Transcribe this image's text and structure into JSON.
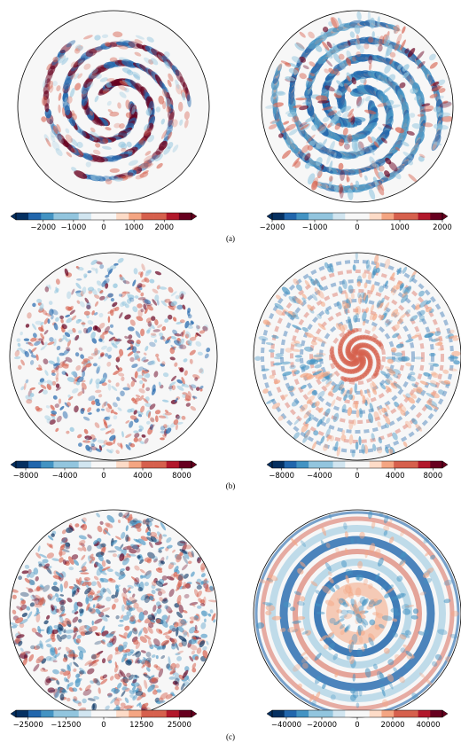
{
  "figure": {
    "rows": [
      {
        "caption": "(a)",
        "panels": [
          {
            "pattern": "spiral-arms",
            "colorbar": {
              "vmin": -2900,
              "vmax": 2900,
              "ticks": [
                "−2000",
                "−1000",
                "0",
                "1000",
                "2000"
              ],
              "tick_values": [
                -2000,
                -1000,
                0,
                1000,
                2000
              ]
            }
          },
          {
            "pattern": "spiral-dense",
            "colorbar": {
              "vmin": -2000,
              "vmax": 2000,
              "ticks": [
                "−2000",
                "−1000",
                "0",
                "1000",
                "2000"
              ],
              "tick_values": [
                -2000,
                -1000,
                0,
                1000,
                2000
              ]
            }
          }
        ]
      },
      {
        "caption": "(b)",
        "panels": [
          {
            "pattern": "cellular-speckle",
            "colorbar": {
              "vmin": -9000,
              "vmax": 9000,
              "ticks": [
                "−8000",
                "−4000",
                "0",
                "4000",
                "8000"
              ],
              "tick_values": [
                -8000,
                -4000,
                0,
                4000,
                8000
              ]
            }
          },
          {
            "pattern": "spiral-core-rings",
            "colorbar": {
              "vmin": -9000,
              "vmax": 9000,
              "ticks": [
                "−8000",
                "−4000",
                "0",
                "4000",
                "8000"
              ],
              "tick_values": [
                -8000,
                -4000,
                0,
                4000,
                8000
              ]
            }
          }
        ]
      },
      {
        "caption": "(c)",
        "panels": [
          {
            "pattern": "turbulent-speckle",
            "colorbar": {
              "vmin": -29000,
              "vmax": 29000,
              "ticks": [
                "−25000",
                "−12500",
                "0",
                "12500",
                "25000"
              ],
              "tick_values": [
                -25000,
                -12500,
                0,
                12500,
                25000
              ]
            }
          },
          {
            "pattern": "concentric-rings",
            "colorbar": {
              "vmin": -48000,
              "vmax": 48000,
              "ticks": [
                "−40000",
                "−20000",
                "0",
                "20000",
                "40000"
              ],
              "tick_values": [
                -40000,
                -20000,
                0,
                20000,
                40000
              ]
            }
          }
        ]
      }
    ],
    "colormap": {
      "name": "RdBu_r",
      "stops": [
        "#053061",
        "#2166ac",
        "#4393c3",
        "#92c5de",
        "#d1e5f0",
        "#f7f7f7",
        "#fddbc7",
        "#f4a582",
        "#d6604d",
        "#b2182b",
        "#67001f"
      ]
    }
  }
}
